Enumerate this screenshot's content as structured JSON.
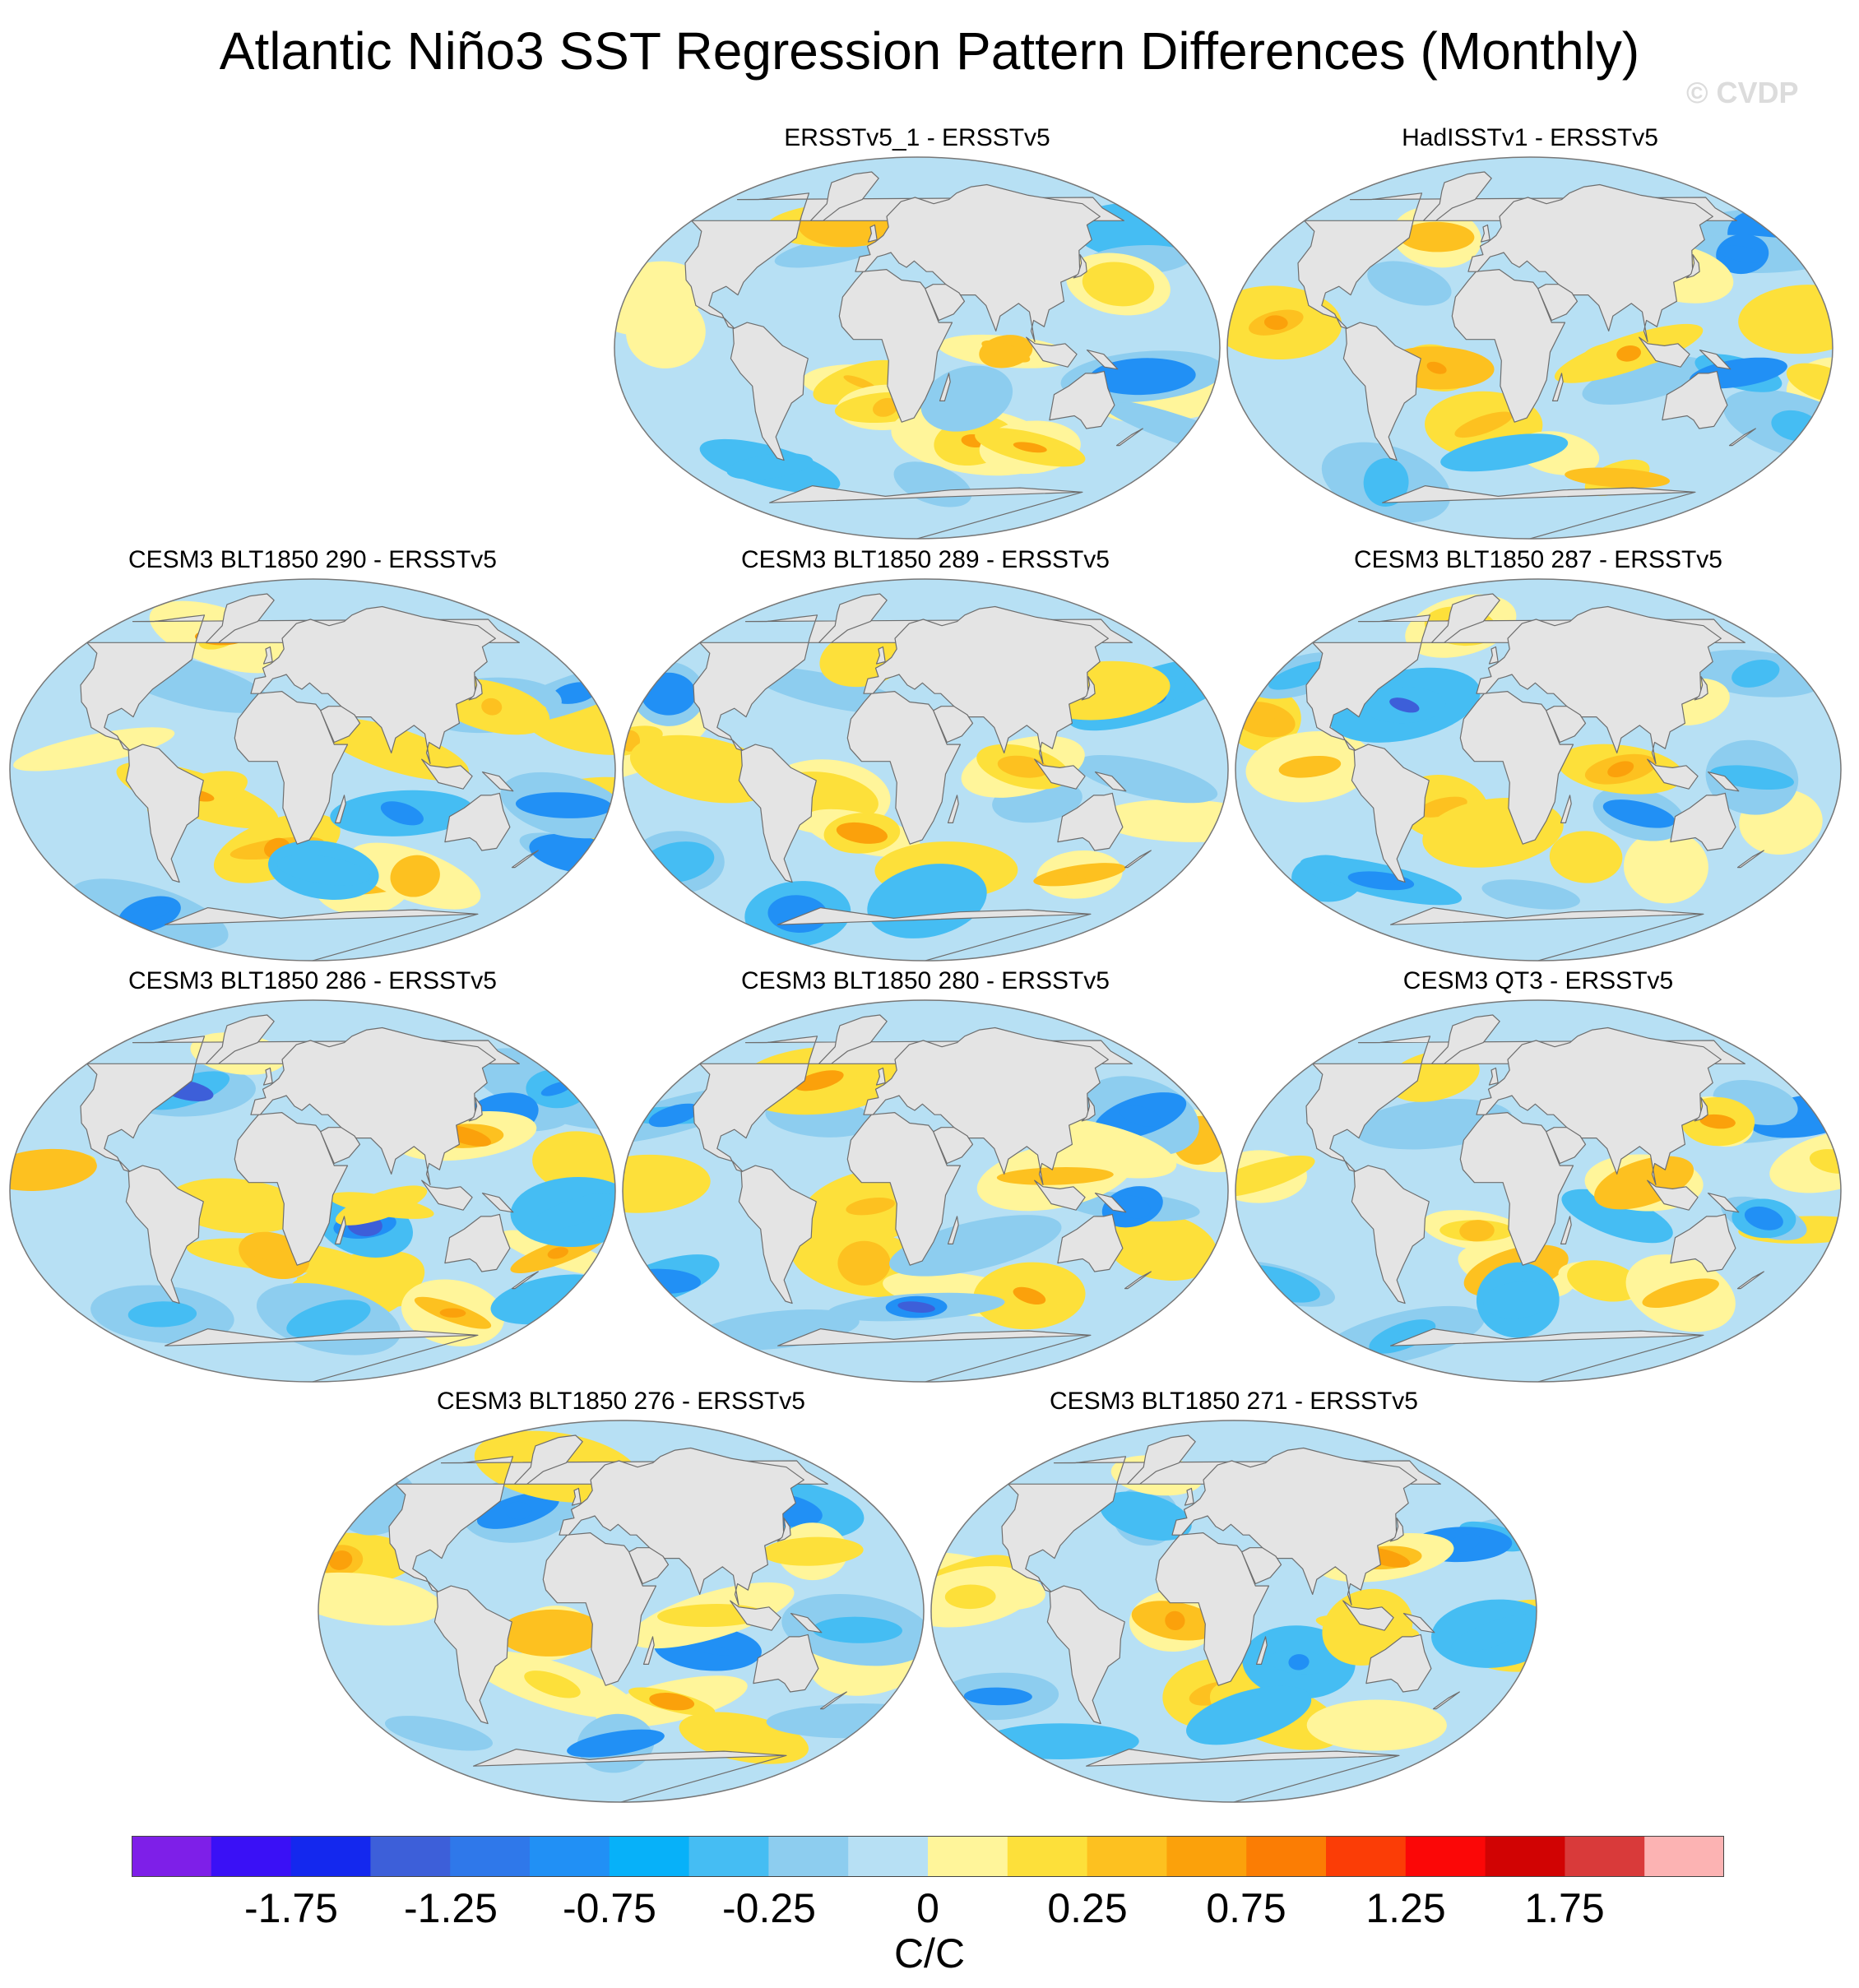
{
  "figure": {
    "title": "Atlantic Niño3 SST Regression Pattern Differences (Monthly)",
    "watermark": "© CVDP"
  },
  "panels": [
    {
      "title": "ERSSTv5_1 - ERSSTv5"
    },
    {
      "title": "HadISSTv1 - ERSSTv5"
    },
    {
      "title": "CESM3 BLT1850 290 - ERSSTv5"
    },
    {
      "title": "CESM3 BLT1850 289 - ERSSTv5"
    },
    {
      "title": "CESM3 BLT1850 287 - ERSSTv5"
    },
    {
      "title": "CESM3 BLT1850 286 - ERSSTv5"
    },
    {
      "title": "CESM3 BLT1850 280 - ERSSTv5"
    },
    {
      "title": "CESM3 QT3 - ERSSTv5"
    },
    {
      "title": "CESM3 BLT1850 276 - ERSSTv5"
    },
    {
      "title": "CESM3 BLT1850 271 - ERSSTv5"
    }
  ],
  "colorbar": {
    "units": "C/C",
    "colors": [
      "#7e1fe8",
      "#3a10f6",
      "#1428ee",
      "#3d5fd9",
      "#2f78ea",
      "#2190f5",
      "#07b1f9",
      "#45bdf3",
      "#8dcdef",
      "#b7e0f4",
      "#fff59a",
      "#fde03a",
      "#fdc120",
      "#fba10b",
      "#fb7d04",
      "#fb3d06",
      "#fb0707",
      "#d10303",
      "#d93a3a",
      "#fcb3b3"
    ],
    "tick_labels": [
      "-1.75",
      "-1.25",
      "-0.75",
      "-0.25",
      "0",
      "0.25",
      "0.75",
      "1.25",
      "1.75"
    ]
  },
  "map_style": {
    "land": "#e4e4e4",
    "coast": "#6e6e6e",
    "ocean_base": "#b7e0f4"
  }
}
